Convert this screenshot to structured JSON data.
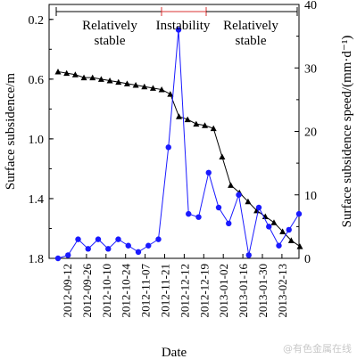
{
  "chart_data": {
    "type": "line",
    "xlabel": "Date",
    "ylabel_left": "Surface subsidence/m",
    "ylabel_right": "Surface subsidence speed/(mm·d⁻¹)",
    "x_ticks": [
      "2012-09-12",
      "2012-09-26",
      "2012-10-10",
      "2012-10-24",
      "2012-11-07",
      "2012-11-21",
      "2012-12-12",
      "2012-12-19",
      "2013-01-02",
      "2013-01-16",
      "2013-01-30",
      "2013-02-13"
    ],
    "left_axis": {
      "ylim": [
        1.8,
        0.1
      ],
      "ticks": [
        "0.2",
        "0.6",
        "1.0",
        "1.4",
        "1.8"
      ]
    },
    "right_axis": {
      "ylim": [
        0,
        40
      ],
      "ticks": [
        "0",
        "10",
        "20",
        "30",
        "40"
      ]
    },
    "regions": [
      {
        "label_lines": [
          "Relatively",
          "stable"
        ]
      },
      {
        "label_lines": [
          "Instability"
        ]
      },
      {
        "label_lines": [
          "Relatively",
          "stable"
        ]
      }
    ],
    "series": [
      {
        "axis": "left",
        "marker": "triangle",
        "color": "#000000",
        "values": [
          0.55,
          0.56,
          0.57,
          0.59,
          0.59,
          0.6,
          0.61,
          0.62,
          0.63,
          0.64,
          0.65,
          0.66,
          0.67,
          0.7,
          0.85,
          0.87,
          0.9,
          0.91,
          0.93,
          1.12,
          1.31,
          1.36,
          1.42,
          1.48,
          1.52,
          1.56,
          1.62,
          1.68,
          1.72
        ]
      },
      {
        "axis": "right",
        "marker": "circle",
        "color": "#1a1aff",
        "values": [
          0,
          0.5,
          3,
          1.5,
          3,
          1.5,
          3,
          2,
          1,
          2,
          3,
          17.5,
          36,
          7,
          6.5,
          13.5,
          8,
          5.5,
          10,
          0.5,
          8,
          5,
          2,
          4.5,
          7
        ]
      }
    ]
  },
  "watermark": "@有色金属在线"
}
